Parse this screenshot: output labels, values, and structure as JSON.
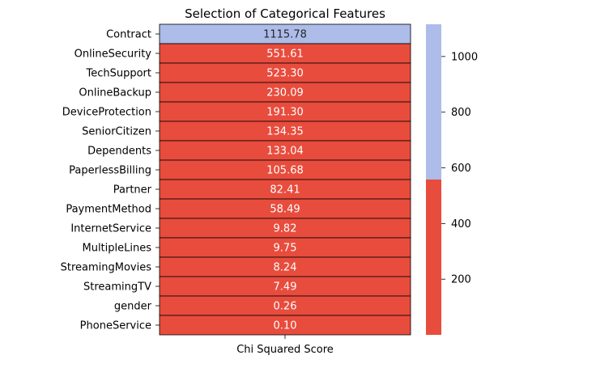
{
  "chart_data": {
    "type": "heatmap",
    "title": "Selection of Categorical Features",
    "xlabel": "",
    "ylabel": "",
    "columns": [
      "Chi Squared Score"
    ],
    "categories": [
      "Contract",
      "OnlineSecurity",
      "TechSupport",
      "OnlineBackup",
      "DeviceProtection",
      "SeniorCitizen",
      "Dependents",
      "PaperlessBilling",
      "Partner",
      "PaymentMethod",
      "InternetService",
      "MultipleLines",
      "StreamingMovies",
      "StreamingTV",
      "gender",
      "PhoneService"
    ],
    "values": [
      1115.78,
      551.61,
      523.3,
      230.09,
      191.3,
      134.35,
      133.04,
      105.68,
      82.41,
      58.49,
      9.82,
      9.75,
      8.24,
      7.49,
      0.26,
      0.1
    ],
    "value_labels": [
      "1115.78",
      "551.61",
      "523.30",
      "230.09",
      "191.30",
      "134.35",
      "133.04",
      "105.68",
      "82.41",
      "58.49",
      "9.82",
      "9.75",
      "8.24",
      "7.49",
      "0.26",
      "0.10"
    ],
    "colorbar": {
      "range": [
        0.1,
        1115.78
      ],
      "ticks": [
        200,
        400,
        600,
        800,
        1000
      ],
      "colors": [
        "#e84c3d",
        "#adbce8"
      ],
      "threshold": 557.94
    },
    "annotation_colors": {
      "on_red": "#ffffff",
      "on_blue": "#262626"
    },
    "grid": false,
    "legend": "none"
  }
}
